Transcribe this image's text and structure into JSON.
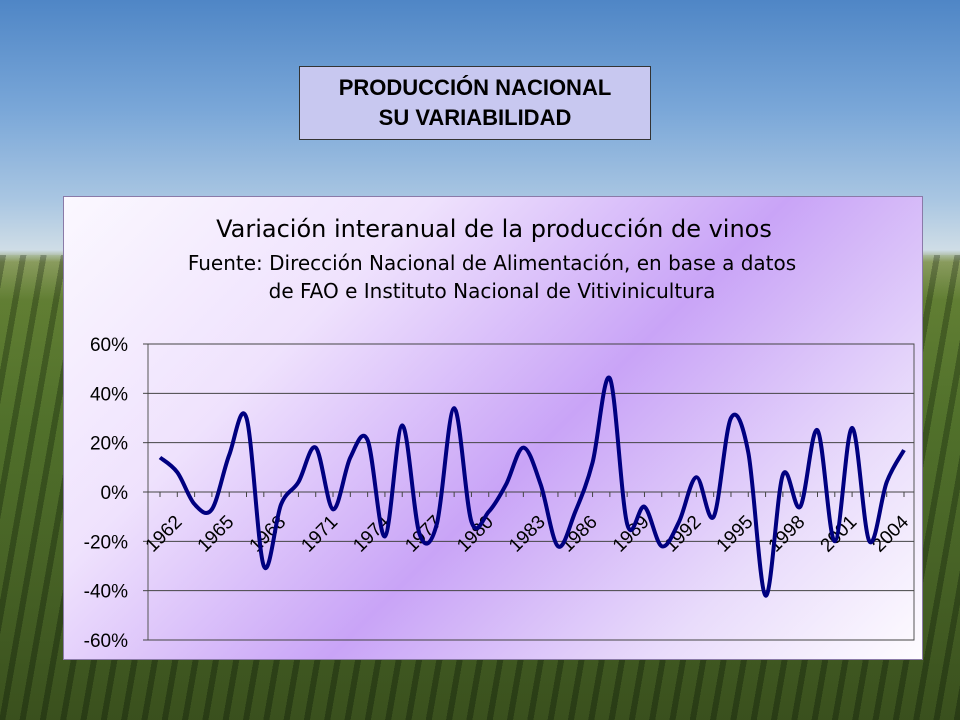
{
  "slide": {
    "title_line1": "PRODUCCIÓN NACIONAL",
    "title_line2": "SU VARIABILIDAD"
  },
  "colors": {
    "series": "#000080",
    "chart_bg_accent": "#c9a4f7",
    "title_box": "#c8c8f0"
  },
  "chart_data": {
    "type": "line",
    "title": "Variación interanual de la producción de vinos",
    "subtitle_line1": "Fuente: Dirección Nacional de Alimentación, en base a datos",
    "subtitle_line2": "de FAO e Instituto Nacional de Vitivinicultura",
    "xlabel": "",
    "ylabel": "",
    "ylim": [
      -0.6,
      0.6
    ],
    "yticks": [
      "60%",
      "40%",
      "20%",
      "0%",
      "-20%",
      "-40%",
      "-60%"
    ],
    "xtick_labels": [
      "1962",
      "1965",
      "1968",
      "1971",
      "1974",
      "1977",
      "1980",
      "1983",
      "1986",
      "1989",
      "1992",
      "1995",
      "1998",
      "2001",
      "2004"
    ],
    "grid": "horizontal",
    "legend": "none",
    "series": [
      {
        "x": [
          1962,
          1963,
          1964,
          1965,
          1966,
          1967,
          1968,
          1969,
          1970,
          1971,
          1972,
          1973,
          1974,
          1975,
          1976,
          1977,
          1978,
          1979,
          1980,
          1981,
          1982,
          1983,
          1984,
          1985,
          1986,
          1987,
          1988,
          1989,
          1990,
          1991,
          1992,
          1993,
          1994,
          1995,
          1996,
          1997,
          1998,
          1999,
          2000,
          2001,
          2002,
          2003,
          2004,
          2005
        ],
        "values": [
          0.14,
          0.08,
          -0.05,
          -0.07,
          0.15,
          0.3,
          -0.3,
          -0.05,
          0.04,
          0.18,
          -0.07,
          0.14,
          0.21,
          -0.18,
          0.27,
          -0.17,
          -0.13,
          0.34,
          -0.12,
          -0.08,
          0.03,
          0.18,
          0.03,
          -0.22,
          -0.08,
          0.12,
          0.46,
          -0.13,
          -0.06,
          -0.22,
          -0.12,
          0.06,
          -0.1,
          0.3,
          0.16,
          -0.42,
          0.07,
          -0.06,
          0.25,
          -0.2,
          0.26,
          -0.2,
          0.04,
          0.17
        ]
      }
    ]
  }
}
